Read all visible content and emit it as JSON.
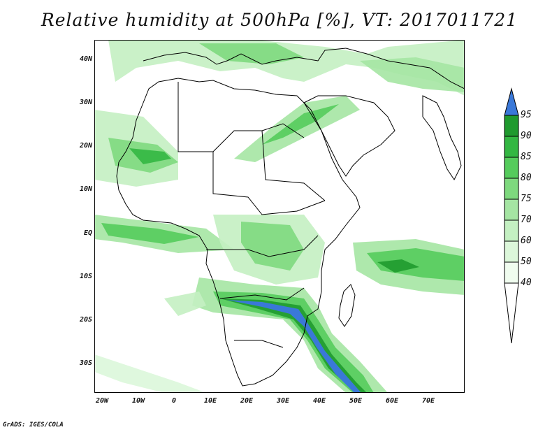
{
  "title": "Relative humidity at 500hPa [%], VT: 2017011721",
  "footer": "GrADS: IGES/COLA",
  "map": {
    "lat_range": [
      -37,
      44
    ],
    "lon_range": [
      -22,
      80
    ],
    "lat_ticks": [
      "40N",
      "30N",
      "20N",
      "10N",
      "EQ",
      "10S",
      "20S",
      "30S"
    ],
    "lon_ticks": [
      "20W",
      "10W",
      "0",
      "10E",
      "20E",
      "30E",
      "40E",
      "50E",
      "60E",
      "70E"
    ]
  },
  "colorbar": {
    "levels": [
      "95",
      "90",
      "85",
      "80",
      "75",
      "70",
      "60",
      "50",
      "40"
    ],
    "colors": {
      "above_95": "#3a78d8",
      "90_95": "#1f9a2e",
      "85_90": "#33b742",
      "80_85": "#55cc5c",
      "75_80": "#7ed97e",
      "70_75": "#a5e5a3",
      "60_70": "#c4f0c2",
      "50_60": "#dcf7da",
      "40_50": "#f0fcef"
    }
  }
}
